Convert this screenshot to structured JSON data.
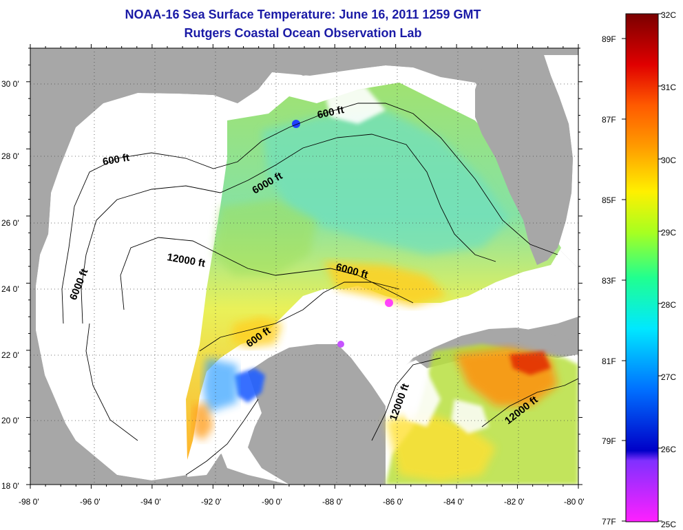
{
  "title": {
    "line1": "NOAA-16 Sea Surface Temperature:  June 16, 2011 1259 GMT",
    "line2": "Rutgers Coastal Ocean Observation Lab"
  },
  "axes": {
    "x_ticks": [
      "-98 0'",
      "-96 0'",
      "-94 0'",
      "-92 0'",
      "-90 0'",
      "-88 0'",
      "-86 0'",
      "-84 0'",
      "-82 0'",
      "-80 0'"
    ],
    "y_ticks": [
      "18 0'",
      "20 0'",
      "22 0'",
      "24 0'",
      "26 0'",
      "28 0'",
      "30 0'"
    ],
    "lon_range": [
      -98,
      -80
    ],
    "lat_range": [
      18,
      31
    ],
    "grid": "dotted"
  },
  "contours": [
    {
      "label": "600 ft"
    },
    {
      "label": "600 ft"
    },
    {
      "label": "6000 ft"
    },
    {
      "label": "6000 ft"
    },
    {
      "label": "12000 ft"
    },
    {
      "label": "6000 ft"
    },
    {
      "label": "600 ft"
    },
    {
      "label": "12000 ft"
    },
    {
      "label": "12000 ft"
    }
  ],
  "colorbar": {
    "celsius_labels": [
      "32C",
      "31C",
      "30C",
      "29C",
      "28C",
      "27C",
      "26C",
      "25C"
    ],
    "fahrenheit_labels": [
      "89F",
      "87F",
      "85F",
      "83F",
      "81F",
      "79F",
      "77F"
    ],
    "colors": [
      "#7a0000",
      "#e00000",
      "#ff5a00",
      "#ff9a00",
      "#fff000",
      "#a8ff20",
      "#20ff90",
      "#00e8ff",
      "#0070ff",
      "#0000c8",
      "#8030ff",
      "#ff20ff"
    ]
  },
  "colors": {
    "land": "#a7a7a7",
    "no_data": "#ffffff",
    "title": "#1a1aa6"
  }
}
